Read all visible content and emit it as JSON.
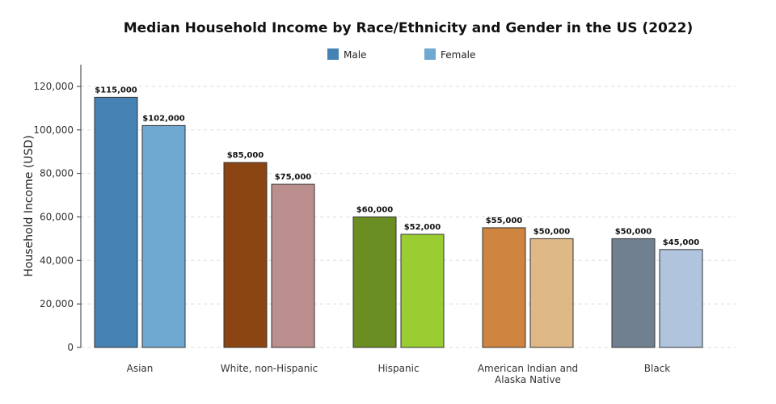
{
  "chart_data": {
    "type": "bar",
    "title": "Median Household Income by Race/Ethnicity and Gender in the US (2022)",
    "ylabel": "Household Income (USD)",
    "xlabel": "",
    "ylim": [
      0,
      130000
    ],
    "yticks": [
      0,
      20000,
      40000,
      60000,
      80000,
      100000,
      120000
    ],
    "ytick_labels": [
      "0",
      "20,000",
      "40,000",
      "60,000",
      "80,000",
      "100,000",
      "120,000"
    ],
    "grid": true,
    "legend_placement": "top-center",
    "legend": [
      {
        "name": "Male",
        "color": "#4682B4"
      },
      {
        "name": "Female",
        "color": "#6FA8D0"
      }
    ],
    "categories": [
      {
        "label": [
          "Asian"
        ],
        "male": 115000,
        "female": 102000,
        "male_color": "#4682B4",
        "female_color": "#6FA8D0"
      },
      {
        "label": [
          "White, non-Hispanic"
        ],
        "male": 85000,
        "female": 75000,
        "male_color": "#8B4513",
        "female_color": "#BC8F8F"
      },
      {
        "label": [
          "Hispanic"
        ],
        "male": 60000,
        "female": 52000,
        "male_color": "#6B8E23",
        "female_color": "#9ACD32"
      },
      {
        "label": [
          "American Indian and",
          "Alaska Native"
        ],
        "male": 55000,
        "female": 50000,
        "male_color": "#CD853F",
        "female_color": "#DEB887"
      },
      {
        "label": [
          "Black"
        ],
        "male": 50000,
        "female": 45000,
        "male_color": "#708090",
        "female_color": "#B0C4DE"
      }
    ],
    "data_labels": {
      "Asian": [
        "$115,000",
        "$102,000"
      ],
      "White, non-Hispanic": [
        "$85,000",
        "$75,000"
      ],
      "Hispanic": [
        "$60,000",
        "$52,000"
      ],
      "American Indian and Alaska Native": [
        "$55,000",
        "$50,000"
      ],
      "Black": [
        "$50,000",
        "$45,000"
      ]
    }
  }
}
